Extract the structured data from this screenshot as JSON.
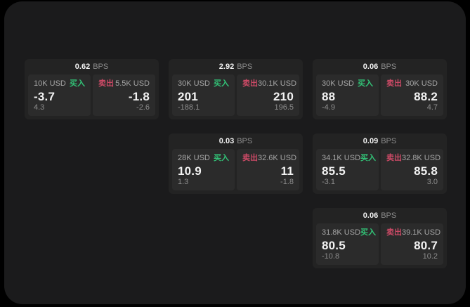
{
  "colors": {
    "panel_bg": "#1b1b1c",
    "card_bg": "#232323",
    "tile_bg": "#2b2b2b",
    "buy": "#32c377",
    "sell": "#cc4a66",
    "text_primary": "#f2f2f2",
    "text_muted": "#8d8d8d",
    "text_label": "#a6a6a6"
  },
  "labels": {
    "bps_unit": "BPS",
    "buy": "买入",
    "sell": "卖出"
  },
  "cards": [
    {
      "bps": "0.62",
      "buy": {
        "amount": "10K USD",
        "price": "-3.7",
        "delta": "4.3"
      },
      "sell": {
        "amount": "5.5K USD",
        "price": "-1.8",
        "delta": "-2.6"
      }
    },
    {
      "bps": "2.92",
      "buy": {
        "amount": "30K USD",
        "price": "201",
        "delta": "-188.1"
      },
      "sell": {
        "amount": "30.1K USD",
        "price": "210",
        "delta": "196.5"
      }
    },
    {
      "bps": "0.06",
      "buy": {
        "amount": "30K USD",
        "price": "88",
        "delta": "-4.9"
      },
      "sell": {
        "amount": "30K USD",
        "price": "88.2",
        "delta": "4.7"
      }
    },
    {
      "bps": "0.03",
      "buy": {
        "amount": "28K USD",
        "price": "10.9",
        "delta": "1.3"
      },
      "sell": {
        "amount": "32.6K USD",
        "price": "11",
        "delta": "-1.8"
      }
    },
    {
      "bps": "0.09",
      "buy": {
        "amount": "34.1K USD",
        "price": "85.5",
        "delta": "-3.1"
      },
      "sell": {
        "amount": "32.8K USD",
        "price": "85.8",
        "delta": "3.0"
      }
    },
    {
      "bps": "0.06",
      "buy": {
        "amount": "31.8K USD",
        "price": "80.5",
        "delta": "-10.8"
      },
      "sell": {
        "amount": "39.1K USD",
        "price": "80.7",
        "delta": "10.2"
      }
    }
  ]
}
